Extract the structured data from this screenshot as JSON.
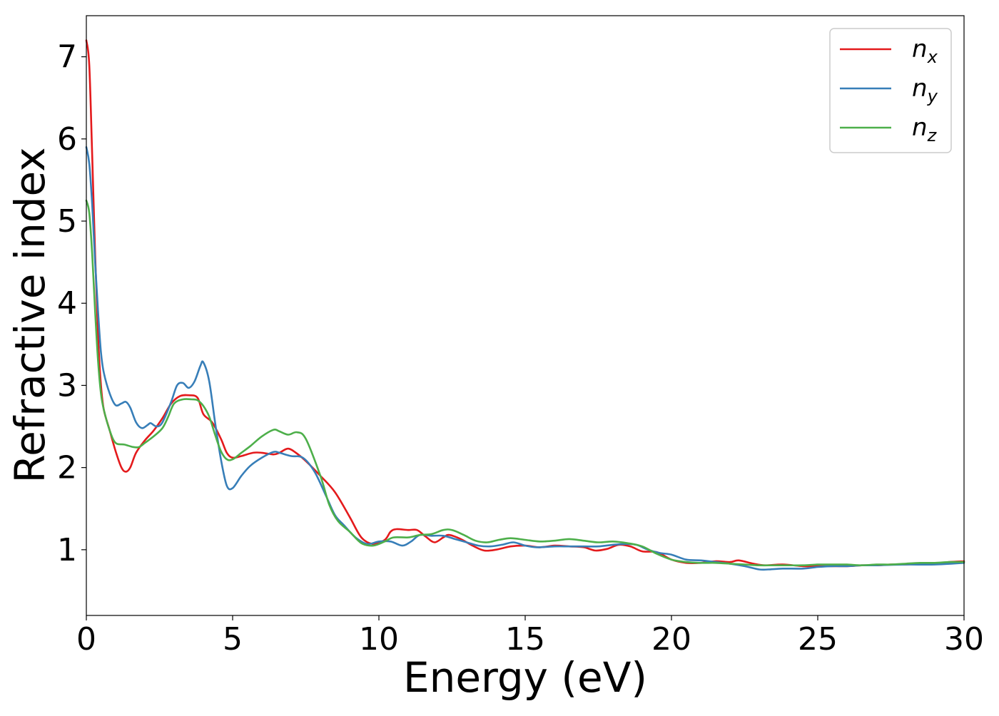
{
  "chart_data": {
    "type": "line",
    "title": "",
    "xlabel": "Energy (eV)",
    "ylabel": "Refractive index",
    "xlim": [
      0,
      30
    ],
    "ylim": [
      0.2,
      7.5
    ],
    "xticks": [
      0,
      5,
      10,
      15,
      20,
      25,
      30
    ],
    "xtick_labels": [
      "0",
      "5",
      "10",
      "15",
      "20",
      "25",
      "30"
    ],
    "yticks": [
      1,
      2,
      3,
      4,
      5,
      6,
      7
    ],
    "ytick_labels": [
      "1",
      "2",
      "3",
      "4",
      "5",
      "6",
      "7"
    ],
    "grid": false,
    "legend_position": "top-right",
    "series": [
      {
        "name": "n_x",
        "label_main": "n",
        "label_sub": "x",
        "color": "#e41a1c",
        "points": [
          [
            0,
            7.2
          ],
          [
            0.1,
            6.9
          ],
          [
            0.2,
            5.8
          ],
          [
            0.3,
            4.6
          ],
          [
            0.4,
            3.6
          ],
          [
            0.5,
            3.0
          ],
          [
            0.6,
            2.7
          ],
          [
            0.8,
            2.45
          ],
          [
            1.0,
            2.2
          ],
          [
            1.2,
            2.0
          ],
          [
            1.35,
            1.95
          ],
          [
            1.5,
            2.0
          ],
          [
            1.7,
            2.18
          ],
          [
            2.0,
            2.33
          ],
          [
            2.3,
            2.45
          ],
          [
            2.6,
            2.6
          ],
          [
            2.9,
            2.78
          ],
          [
            3.2,
            2.87
          ],
          [
            3.5,
            2.88
          ],
          [
            3.8,
            2.85
          ],
          [
            4.0,
            2.65
          ],
          [
            4.3,
            2.55
          ],
          [
            4.6,
            2.35
          ],
          [
            4.8,
            2.18
          ],
          [
            5.0,
            2.12
          ],
          [
            5.3,
            2.14
          ],
          [
            5.7,
            2.18
          ],
          [
            6.0,
            2.18
          ],
          [
            6.4,
            2.16
          ],
          [
            6.6,
            2.18
          ],
          [
            6.9,
            2.23
          ],
          [
            7.2,
            2.17
          ],
          [
            7.5,
            2.08
          ],
          [
            8.0,
            1.9
          ],
          [
            8.5,
            1.7
          ],
          [
            9.0,
            1.4
          ],
          [
            9.4,
            1.15
          ],
          [
            9.8,
            1.07
          ],
          [
            10.2,
            1.12
          ],
          [
            10.4,
            1.22
          ],
          [
            10.6,
            1.25
          ],
          [
            11.0,
            1.24
          ],
          [
            11.3,
            1.24
          ],
          [
            11.6,
            1.16
          ],
          [
            11.9,
            1.09
          ],
          [
            12.2,
            1.15
          ],
          [
            12.4,
            1.18
          ],
          [
            12.8,
            1.13
          ],
          [
            13.2,
            1.05
          ],
          [
            13.6,
            0.99
          ],
          [
            14.0,
            1.0
          ],
          [
            14.5,
            1.04
          ],
          [
            15.0,
            1.05
          ],
          [
            15.5,
            1.03
          ],
          [
            16.0,
            1.05
          ],
          [
            16.5,
            1.04
          ],
          [
            17.0,
            1.03
          ],
          [
            17.4,
            0.99
          ],
          [
            17.8,
            1.01
          ],
          [
            18.2,
            1.06
          ],
          [
            18.6,
            1.04
          ],
          [
            19.0,
            0.98
          ],
          [
            19.5,
            0.97
          ],
          [
            20.0,
            0.88
          ],
          [
            20.5,
            0.84
          ],
          [
            21.0,
            0.84
          ],
          [
            21.5,
            0.86
          ],
          [
            22.0,
            0.85
          ],
          [
            22.3,
            0.87
          ],
          [
            22.8,
            0.83
          ],
          [
            23.2,
            0.81
          ],
          [
            23.8,
            0.82
          ],
          [
            24.5,
            0.8
          ],
          [
            25.0,
            0.8
          ],
          [
            26.0,
            0.8
          ],
          [
            26.5,
            0.81
          ],
          [
            27.0,
            0.81
          ],
          [
            27.5,
            0.82
          ],
          [
            28.0,
            0.82
          ],
          [
            28.5,
            0.83
          ],
          [
            29.0,
            0.83
          ],
          [
            29.5,
            0.85
          ],
          [
            30.0,
            0.86
          ]
        ]
      },
      {
        "name": "n_y",
        "label_main": "n",
        "label_sub": "y",
        "color": "#377eb8",
        "points": [
          [
            0,
            5.9
          ],
          [
            0.1,
            5.7
          ],
          [
            0.2,
            5.2
          ],
          [
            0.3,
            4.5
          ],
          [
            0.4,
            3.9
          ],
          [
            0.5,
            3.4
          ],
          [
            0.6,
            3.15
          ],
          [
            0.8,
            2.9
          ],
          [
            1.0,
            2.76
          ],
          [
            1.2,
            2.78
          ],
          [
            1.35,
            2.8
          ],
          [
            1.5,
            2.73
          ],
          [
            1.7,
            2.55
          ],
          [
            1.9,
            2.48
          ],
          [
            2.1,
            2.52
          ],
          [
            2.2,
            2.54
          ],
          [
            2.4,
            2.5
          ],
          [
            2.6,
            2.55
          ],
          [
            2.9,
            2.8
          ],
          [
            3.1,
            3.0
          ],
          [
            3.3,
            3.03
          ],
          [
            3.5,
            2.97
          ],
          [
            3.7,
            3.05
          ],
          [
            3.9,
            3.24
          ],
          [
            4.0,
            3.28
          ],
          [
            4.2,
            3.05
          ],
          [
            4.4,
            2.55
          ],
          [
            4.6,
            2.1
          ],
          [
            4.8,
            1.78
          ],
          [
            5.0,
            1.75
          ],
          [
            5.3,
            1.9
          ],
          [
            5.6,
            2.02
          ],
          [
            6.0,
            2.12
          ],
          [
            6.4,
            2.19
          ],
          [
            6.6,
            2.18
          ],
          [
            7.0,
            2.14
          ],
          [
            7.4,
            2.12
          ],
          [
            7.8,
            1.95
          ],
          [
            8.2,
            1.65
          ],
          [
            8.5,
            1.42
          ],
          [
            8.8,
            1.3
          ],
          [
            9.2,
            1.15
          ],
          [
            9.6,
            1.07
          ],
          [
            10.0,
            1.1
          ],
          [
            10.4,
            1.1
          ],
          [
            10.8,
            1.05
          ],
          [
            11.1,
            1.1
          ],
          [
            11.4,
            1.18
          ],
          [
            11.8,
            1.17
          ],
          [
            12.2,
            1.17
          ],
          [
            12.6,
            1.13
          ],
          [
            13.0,
            1.09
          ],
          [
            13.4,
            1.05
          ],
          [
            13.8,
            1.04
          ],
          [
            14.2,
            1.06
          ],
          [
            14.6,
            1.09
          ],
          [
            15.0,
            1.05
          ],
          [
            15.4,
            1.03
          ],
          [
            16.0,
            1.04
          ],
          [
            16.5,
            1.04
          ],
          [
            17.0,
            1.04
          ],
          [
            17.5,
            1.04
          ],
          [
            18.0,
            1.06
          ],
          [
            18.4,
            1.07
          ],
          [
            18.8,
            1.06
          ],
          [
            19.2,
            1.0
          ],
          [
            19.6,
            0.96
          ],
          [
            20.0,
            0.94
          ],
          [
            20.5,
            0.88
          ],
          [
            21.0,
            0.87
          ],
          [
            21.5,
            0.85
          ],
          [
            22.0,
            0.83
          ],
          [
            22.5,
            0.8
          ],
          [
            23.0,
            0.76
          ],
          [
            23.3,
            0.76
          ],
          [
            23.8,
            0.77
          ],
          [
            24.5,
            0.77
          ],
          [
            25.0,
            0.79
          ],
          [
            25.5,
            0.8
          ],
          [
            26.0,
            0.8
          ],
          [
            26.5,
            0.81
          ],
          [
            27.0,
            0.81
          ],
          [
            28.0,
            0.82
          ],
          [
            29.0,
            0.82
          ],
          [
            30.0,
            0.84
          ]
        ]
      },
      {
        "name": "n_z",
        "label_main": "n",
        "label_sub": "z",
        "color": "#4daf4a",
        "points": [
          [
            0,
            5.25
          ],
          [
            0.1,
            5.1
          ],
          [
            0.2,
            4.6
          ],
          [
            0.3,
            3.9
          ],
          [
            0.4,
            3.3
          ],
          [
            0.5,
            2.9
          ],
          [
            0.6,
            2.7
          ],
          [
            0.8,
            2.45
          ],
          [
            1.0,
            2.3
          ],
          [
            1.3,
            2.28
          ],
          [
            1.6,
            2.25
          ],
          [
            1.8,
            2.25
          ],
          [
            2.0,
            2.3
          ],
          [
            2.3,
            2.38
          ],
          [
            2.6,
            2.48
          ],
          [
            2.8,
            2.62
          ],
          [
            3.0,
            2.78
          ],
          [
            3.3,
            2.83
          ],
          [
            3.6,
            2.83
          ],
          [
            3.8,
            2.82
          ],
          [
            4.0,
            2.75
          ],
          [
            4.2,
            2.62
          ],
          [
            4.4,
            2.4
          ],
          [
            4.6,
            2.2
          ],
          [
            4.8,
            2.1
          ],
          [
            5.0,
            2.1
          ],
          [
            5.3,
            2.18
          ],
          [
            5.6,
            2.26
          ],
          [
            6.0,
            2.38
          ],
          [
            6.4,
            2.46
          ],
          [
            6.6,
            2.44
          ],
          [
            6.9,
            2.4
          ],
          [
            7.2,
            2.43
          ],
          [
            7.5,
            2.35
          ],
          [
            8.0,
            1.9
          ],
          [
            8.3,
            1.55
          ],
          [
            8.6,
            1.35
          ],
          [
            9.0,
            1.22
          ],
          [
            9.4,
            1.08
          ],
          [
            9.8,
            1.05
          ],
          [
            10.2,
            1.1
          ],
          [
            10.5,
            1.15
          ],
          [
            11.0,
            1.15
          ],
          [
            11.4,
            1.18
          ],
          [
            11.8,
            1.19
          ],
          [
            12.2,
            1.24
          ],
          [
            12.5,
            1.24
          ],
          [
            12.9,
            1.18
          ],
          [
            13.3,
            1.11
          ],
          [
            13.7,
            1.09
          ],
          [
            14.1,
            1.12
          ],
          [
            14.5,
            1.14
          ],
          [
            15.0,
            1.12
          ],
          [
            15.5,
            1.1
          ],
          [
            16.0,
            1.11
          ],
          [
            16.5,
            1.13
          ],
          [
            17.0,
            1.11
          ],
          [
            17.5,
            1.09
          ],
          [
            18.0,
            1.1
          ],
          [
            18.5,
            1.08
          ],
          [
            19.0,
            1.04
          ],
          [
            19.5,
            0.95
          ],
          [
            20.0,
            0.88
          ],
          [
            20.5,
            0.85
          ],
          [
            21.0,
            0.84
          ],
          [
            21.5,
            0.84
          ],
          [
            22.0,
            0.83
          ],
          [
            22.5,
            0.82
          ],
          [
            23.0,
            0.81
          ],
          [
            23.5,
            0.81
          ],
          [
            24.0,
            0.81
          ],
          [
            24.5,
            0.81
          ],
          [
            25.0,
            0.82
          ],
          [
            25.5,
            0.82
          ],
          [
            26.0,
            0.82
          ],
          [
            26.5,
            0.81
          ],
          [
            27.0,
            0.82
          ],
          [
            27.5,
            0.82
          ],
          [
            28.0,
            0.83
          ],
          [
            28.5,
            0.84
          ],
          [
            29.0,
            0.84
          ],
          [
            29.5,
            0.85
          ],
          [
            30.0,
            0.85
          ]
        ]
      }
    ]
  }
}
